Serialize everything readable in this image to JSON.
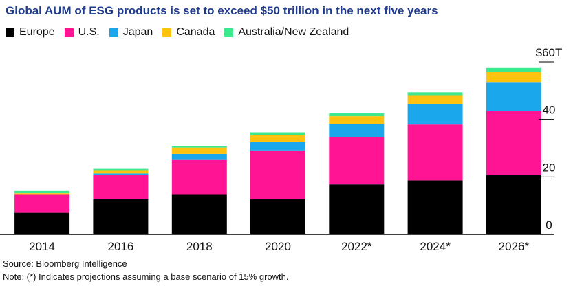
{
  "chart_data": {
    "type": "bar",
    "stacked": true,
    "title": "Global AUM of ESG products is set to exceed $50 trillion in the next five years",
    "categories": [
      "2014",
      "2016",
      "2018",
      "2020",
      "2022*",
      "2024*",
      "2026*"
    ],
    "series": [
      {
        "name": "Europe",
        "color": "#000000",
        "values": [
          7.5,
          12.2,
          14.0,
          12.2,
          17.4,
          18.8,
          20.6
        ]
      },
      {
        "name": "U.S.",
        "color": "#ff1493",
        "values": [
          6.5,
          8.5,
          11.9,
          17.0,
          16.4,
          19.4,
          22.2
        ]
      },
      {
        "name": "Japan",
        "color": "#1aa7ec",
        "values": [
          0.0,
          0.5,
          2.1,
          2.9,
          4.7,
          7.0,
          10.2
        ]
      },
      {
        "name": "Canada",
        "color": "#ffc20e",
        "values": [
          0.3,
          0.9,
          2.2,
          2.4,
          2.6,
          3.2,
          3.5
        ]
      },
      {
        "name": "Australia/New Zealand",
        "color": "#3ee88c",
        "values": [
          0.8,
          0.7,
          0.6,
          1.0,
          1.0,
          1.0,
          1.4
        ]
      }
    ],
    "yaxis": {
      "ticks": [
        {
          "value": 0,
          "label": "0"
        },
        {
          "value": 20,
          "label": "20"
        },
        {
          "value": 40,
          "label": "40"
        },
        {
          "value": 60,
          "label": "$60T"
        }
      ],
      "ylim": [
        0,
        60
      ],
      "position": "right"
    },
    "grid": false,
    "legend_position": "top-left"
  },
  "footer": {
    "source": "Source: Bloomberg Intelligence",
    "note": "Note: (*) Indicates projections assuming a base scenario of 15% growth."
  }
}
